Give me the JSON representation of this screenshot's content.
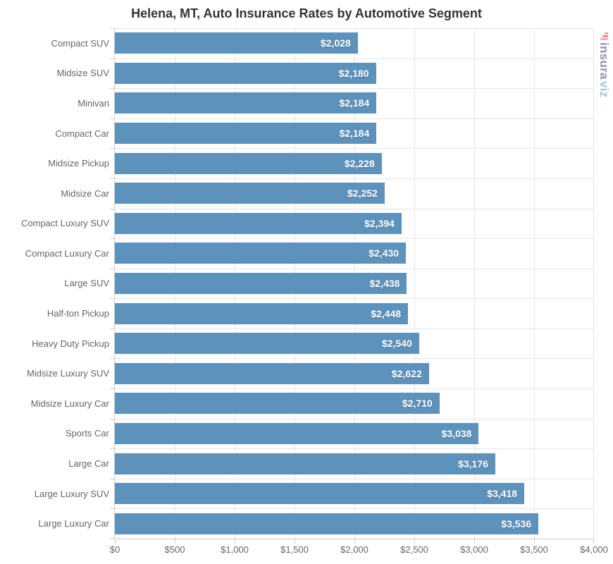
{
  "watermark": {
    "brand_gray": "insura",
    "brand_blue": "viz"
  },
  "chart_data": {
    "type": "bar",
    "orientation": "horizontal",
    "title": "Helena, MT, Auto Insurance Rates by Automotive Segment",
    "categories": [
      "Compact SUV",
      "Midsize SUV",
      "Minivan",
      "Compact Car",
      "Midsize Pickup",
      "Midsize Car",
      "Compact Luxury SUV",
      "Compact Luxury Car",
      "Large SUV",
      "Half-ton Pickup",
      "Heavy Duty Pickup",
      "Midsize Luxury SUV",
      "Midsize Luxury Car",
      "Sports Car",
      "Large Car",
      "Large Luxury SUV",
      "Large Luxury Car"
    ],
    "values": [
      2028,
      2180,
      2184,
      2184,
      2228,
      2252,
      2394,
      2430,
      2438,
      2448,
      2540,
      2622,
      2710,
      3038,
      3176,
      3418,
      3536
    ],
    "value_labels": [
      "$2,028",
      "$2,180",
      "$2,184",
      "$2,184",
      "$2,228",
      "$2,252",
      "$2,394",
      "$2,430",
      "$2,438",
      "$2,448",
      "$2,540",
      "$2,622",
      "$2,710",
      "$3,038",
      "$3,176",
      "$3,418",
      "$3,536"
    ],
    "xlim": [
      0,
      4000
    ],
    "x_tick_step": 500,
    "x_tick_labels": [
      "$0",
      "$500",
      "$1,000",
      "$1,500",
      "$2,000",
      "$2,500",
      "$3,000",
      "$3,500",
      "$4,000"
    ],
    "grid": true,
    "legend": "none",
    "bar_color": "#5d92bc",
    "grid_color": "#e6e6e6",
    "axis_color": "#cccccc",
    "title_color": "#333333",
    "label_color": "#666666",
    "value_label_color": "#ffffff"
  }
}
